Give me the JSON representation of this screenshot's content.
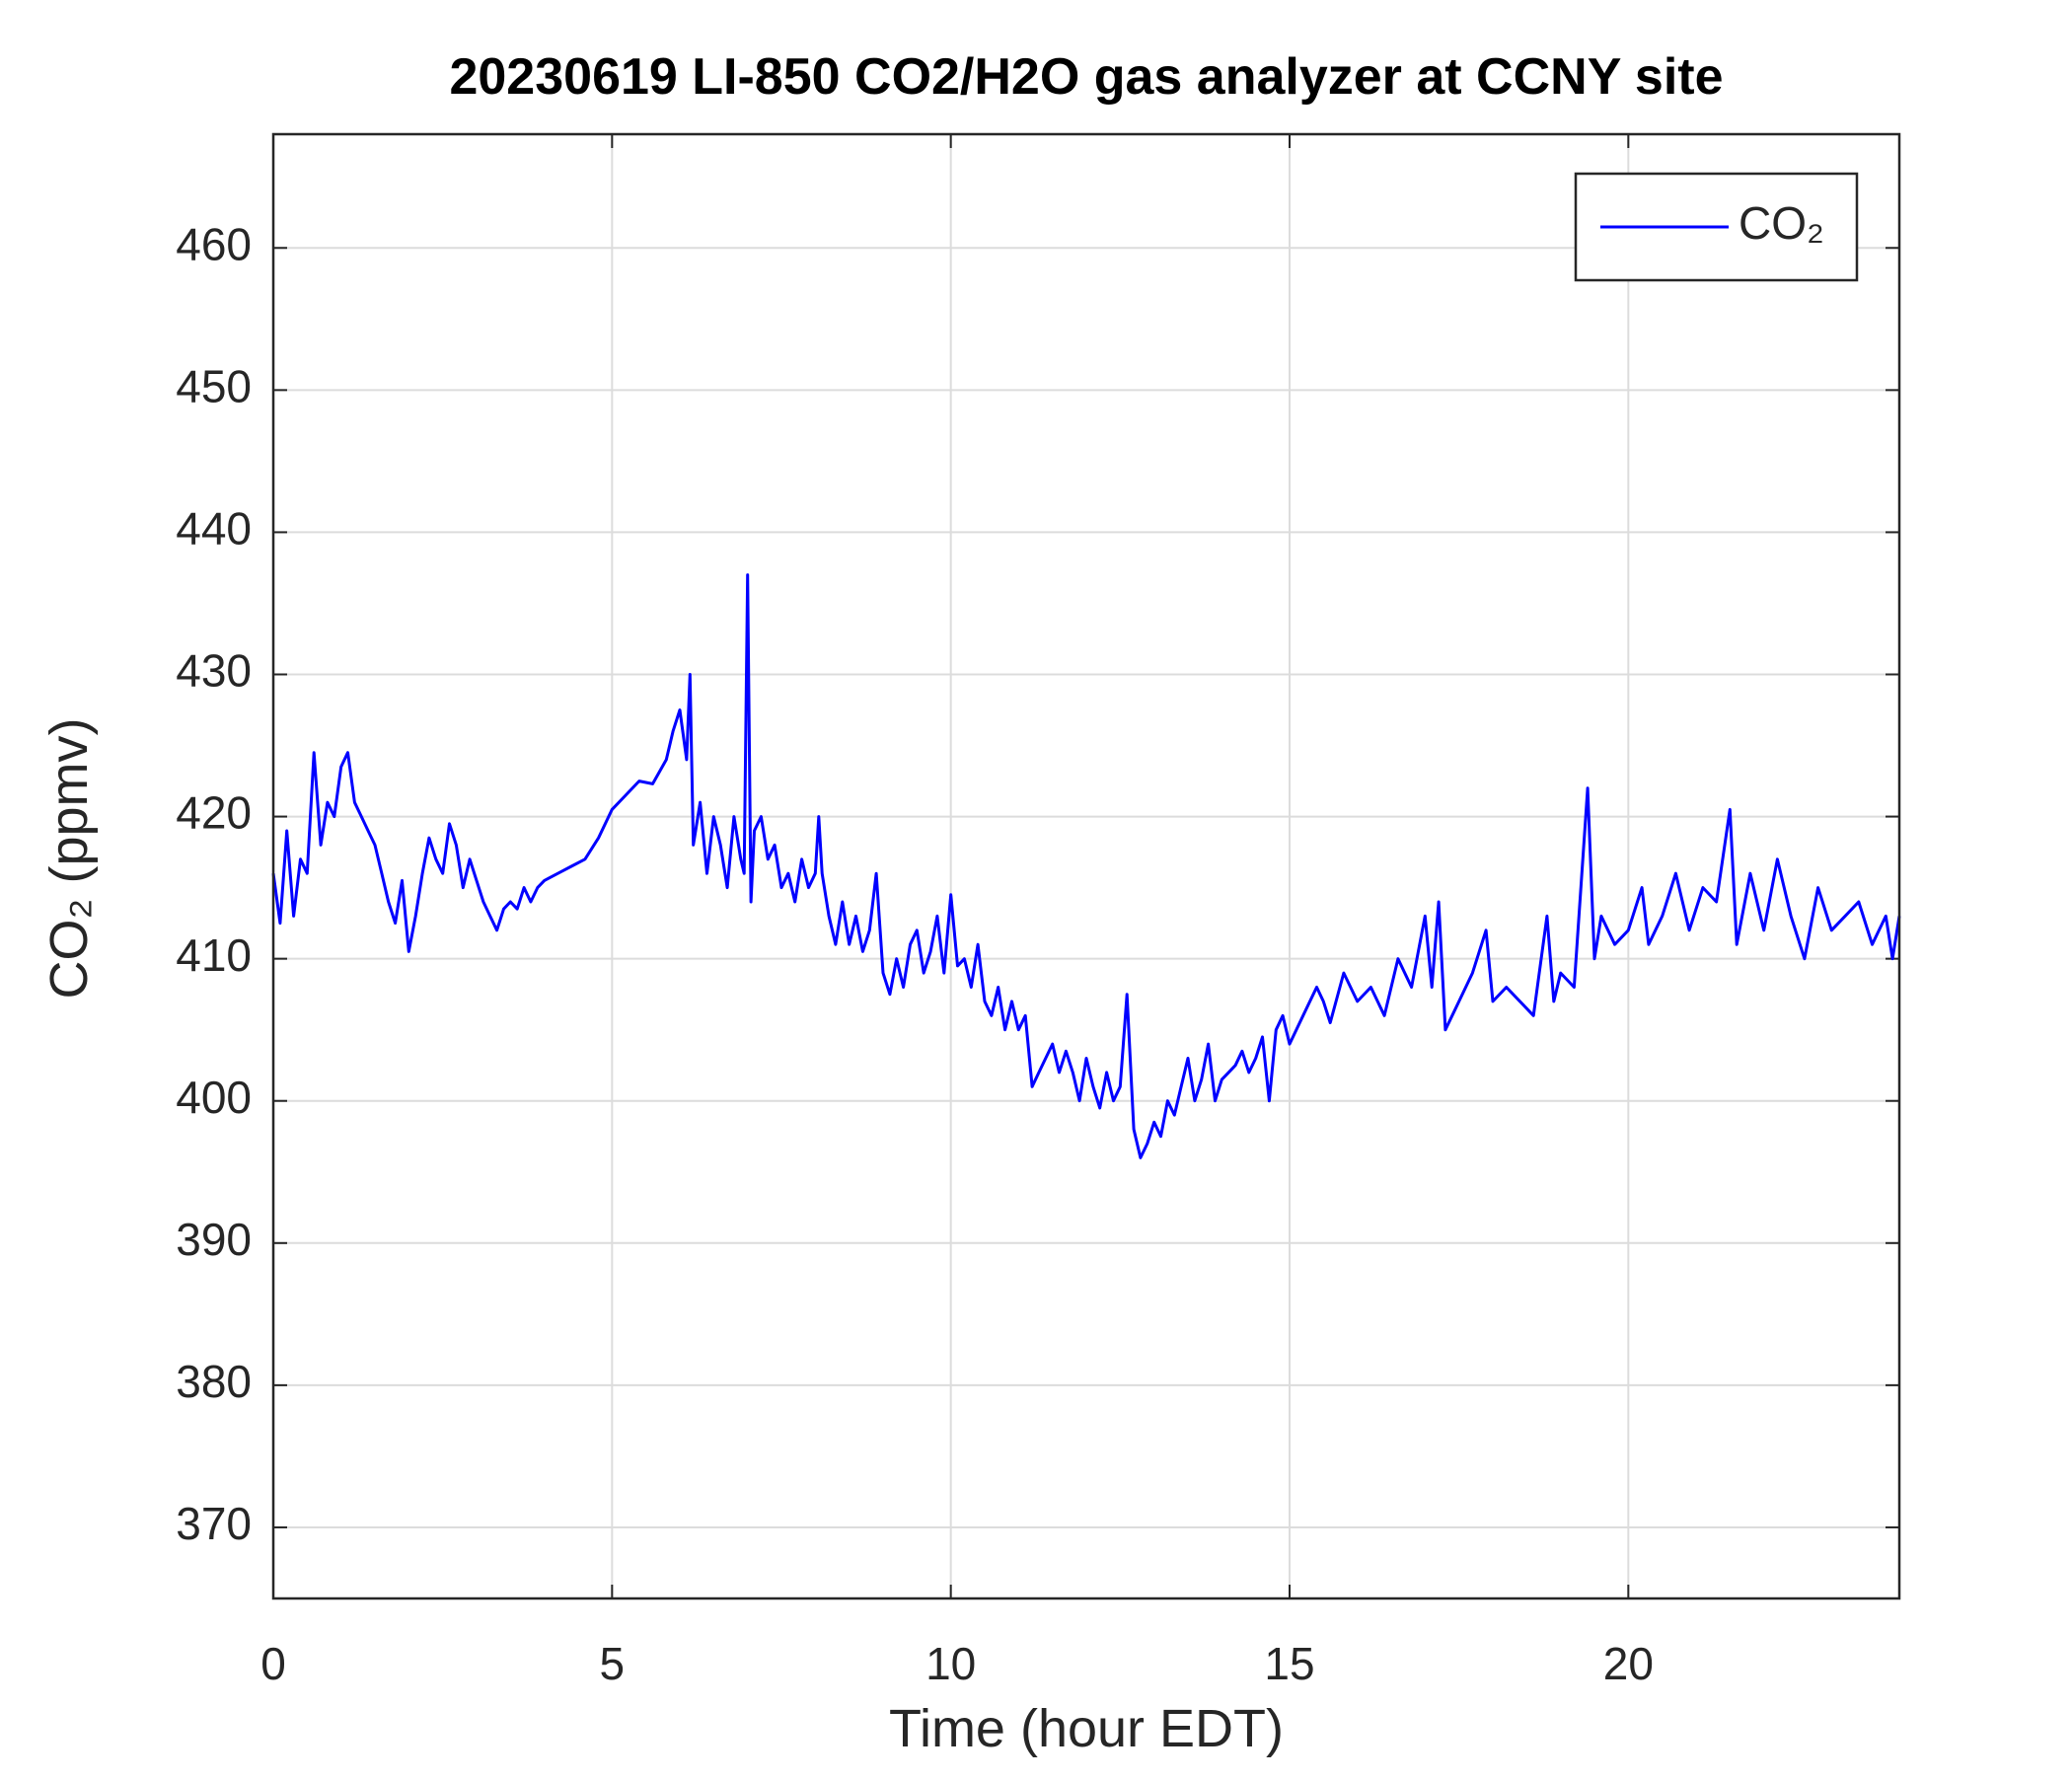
{
  "chart_data": {
    "type": "line",
    "title": "20230619 LI-850 CO2/H2O gas analyzer at CCNY site",
    "xlabel": "Time (hour EDT)",
    "ylabel": "CO₂ (ppmv)",
    "xlim": [
      0,
      24
    ],
    "xticks": [
      0,
      5,
      10,
      15,
      20
    ],
    "ylim": [
      365,
      468
    ],
    "yticks": [
      370,
      380,
      390,
      400,
      410,
      420,
      430,
      440,
      450,
      460
    ],
    "grid": true,
    "legend": "upper right",
    "x": [
      0.0,
      0.1,
      0.2,
      0.3,
      0.4,
      0.5,
      0.6,
      0.7,
      0.8,
      0.9,
      1.0,
      1.1,
      1.2,
      1.3,
      1.4,
      1.5,
      1.6,
      1.7,
      1.8,
      1.9,
      2.0,
      2.1,
      2.2,
      2.3,
      2.4,
      2.5,
      2.6,
      2.7,
      2.8,
      2.9,
      3.0,
      3.1,
      3.2,
      3.3,
      3.4,
      3.5,
      3.6,
      3.7,
      3.8,
      3.9,
      4.0,
      4.2,
      4.4,
      4.6,
      4.8,
      5.0,
      5.2,
      5.4,
      5.6,
      5.8,
      5.9,
      6.0,
      6.1,
      6.15,
      6.2,
      6.3,
      6.4,
      6.5,
      6.6,
      6.7,
      6.8,
      6.9,
      6.95,
      7.0,
      7.05,
      7.1,
      7.2,
      7.3,
      7.4,
      7.5,
      7.6,
      7.7,
      7.8,
      7.9,
      8.0,
      8.05,
      8.1,
      8.2,
      8.3,
      8.4,
      8.5,
      8.6,
      8.7,
      8.8,
      8.9,
      9.0,
      9.1,
      9.2,
      9.3,
      9.4,
      9.5,
      9.6,
      9.7,
      9.8,
      9.9,
      10.0,
      10.1,
      10.2,
      10.3,
      10.4,
      10.5,
      10.6,
      10.7,
      10.8,
      10.9,
      11.0,
      11.1,
      11.2,
      11.3,
      11.4,
      11.5,
      11.6,
      11.7,
      11.8,
      11.9,
      12.0,
      12.1,
      12.2,
      12.3,
      12.4,
      12.5,
      12.6,
      12.7,
      12.8,
      12.9,
      13.0,
      13.1,
      13.2,
      13.3,
      13.4,
      13.5,
      13.6,
      13.7,
      13.8,
      13.9,
      14.0,
      14.1,
      14.2,
      14.3,
      14.4,
      14.5,
      14.6,
      14.7,
      14.8,
      14.9,
      15.0,
      15.2,
      15.4,
      15.5,
      15.6,
      15.8,
      16.0,
      16.2,
      16.4,
      16.6,
      16.8,
      17.0,
      17.1,
      17.2,
      17.3,
      17.5,
      17.7,
      17.9,
      18.0,
      18.2,
      18.4,
      18.6,
      18.8,
      18.9,
      19.0,
      19.2,
      19.4,
      19.5,
      19.6,
      19.8,
      20.0,
      20.2,
      20.3,
      20.5,
      20.7,
      20.9,
      21.1,
      21.3,
      21.5,
      21.6,
      21.8,
      22.0,
      22.2,
      22.4,
      22.6,
      22.8,
      23.0,
      23.2,
      23.4,
      23.6,
      23.8,
      23.9,
      24.0
    ],
    "series": [
      {
        "name": "CO₂",
        "color": "#0000ff",
        "values": [
          416,
          412.5,
          419,
          413,
          417,
          416,
          424.5,
          418,
          421,
          420,
          423.5,
          424.5,
          421,
          420,
          419,
          418,
          416,
          414,
          412.5,
          415.5,
          410.5,
          413,
          416,
          418.5,
          417,
          416,
          419.5,
          418,
          415,
          417,
          415.5,
          414,
          413,
          412,
          413.5,
          414,
          413.5,
          415,
          414,
          415,
          415.5,
          416,
          416.5,
          417,
          418.5,
          420.5,
          421.5,
          422.5,
          422.3,
          424,
          426,
          427.5,
          424,
          430,
          418,
          421,
          416,
          420,
          418,
          415,
          420,
          417,
          416,
          437,
          414,
          419,
          420,
          417,
          418,
          415,
          416,
          414,
          417,
          415,
          416,
          420,
          416,
          413,
          411,
          414,
          411,
          413,
          410.5,
          412,
          416,
          409,
          407.5,
          410,
          408,
          411,
          412,
          409,
          410.5,
          413,
          409,
          414.5,
          409.5,
          410,
          408,
          411,
          407,
          406,
          408,
          405,
          407,
          405,
          406,
          401,
          402,
          403,
          404,
          402,
          403.5,
          402,
          400,
          403,
          401,
          399.5,
          402,
          400,
          401,
          407.5,
          398,
          396,
          397,
          398.5,
          397.5,
          400,
          399,
          401,
          403,
          400,
          401.5,
          404,
          400,
          401.5,
          402,
          402.5,
          403.5,
          402,
          403,
          404.5,
          400,
          405,
          406,
          404,
          406,
          408,
          407,
          405.5,
          409,
          407,
          408,
          406,
          410,
          408,
          413,
          408,
          414,
          405,
          407,
          409,
          412,
          407,
          408,
          407,
          406,
          413,
          407,
          409,
          408,
          422,
          410,
          413,
          411,
          412,
          415,
          411,
          413,
          416,
          412,
          415,
          414,
          420.5,
          411,
          416,
          412,
          417,
          413,
          410,
          415,
          412,
          413,
          414,
          411,
          413,
          410,
          413
        ]
      }
    ]
  }
}
